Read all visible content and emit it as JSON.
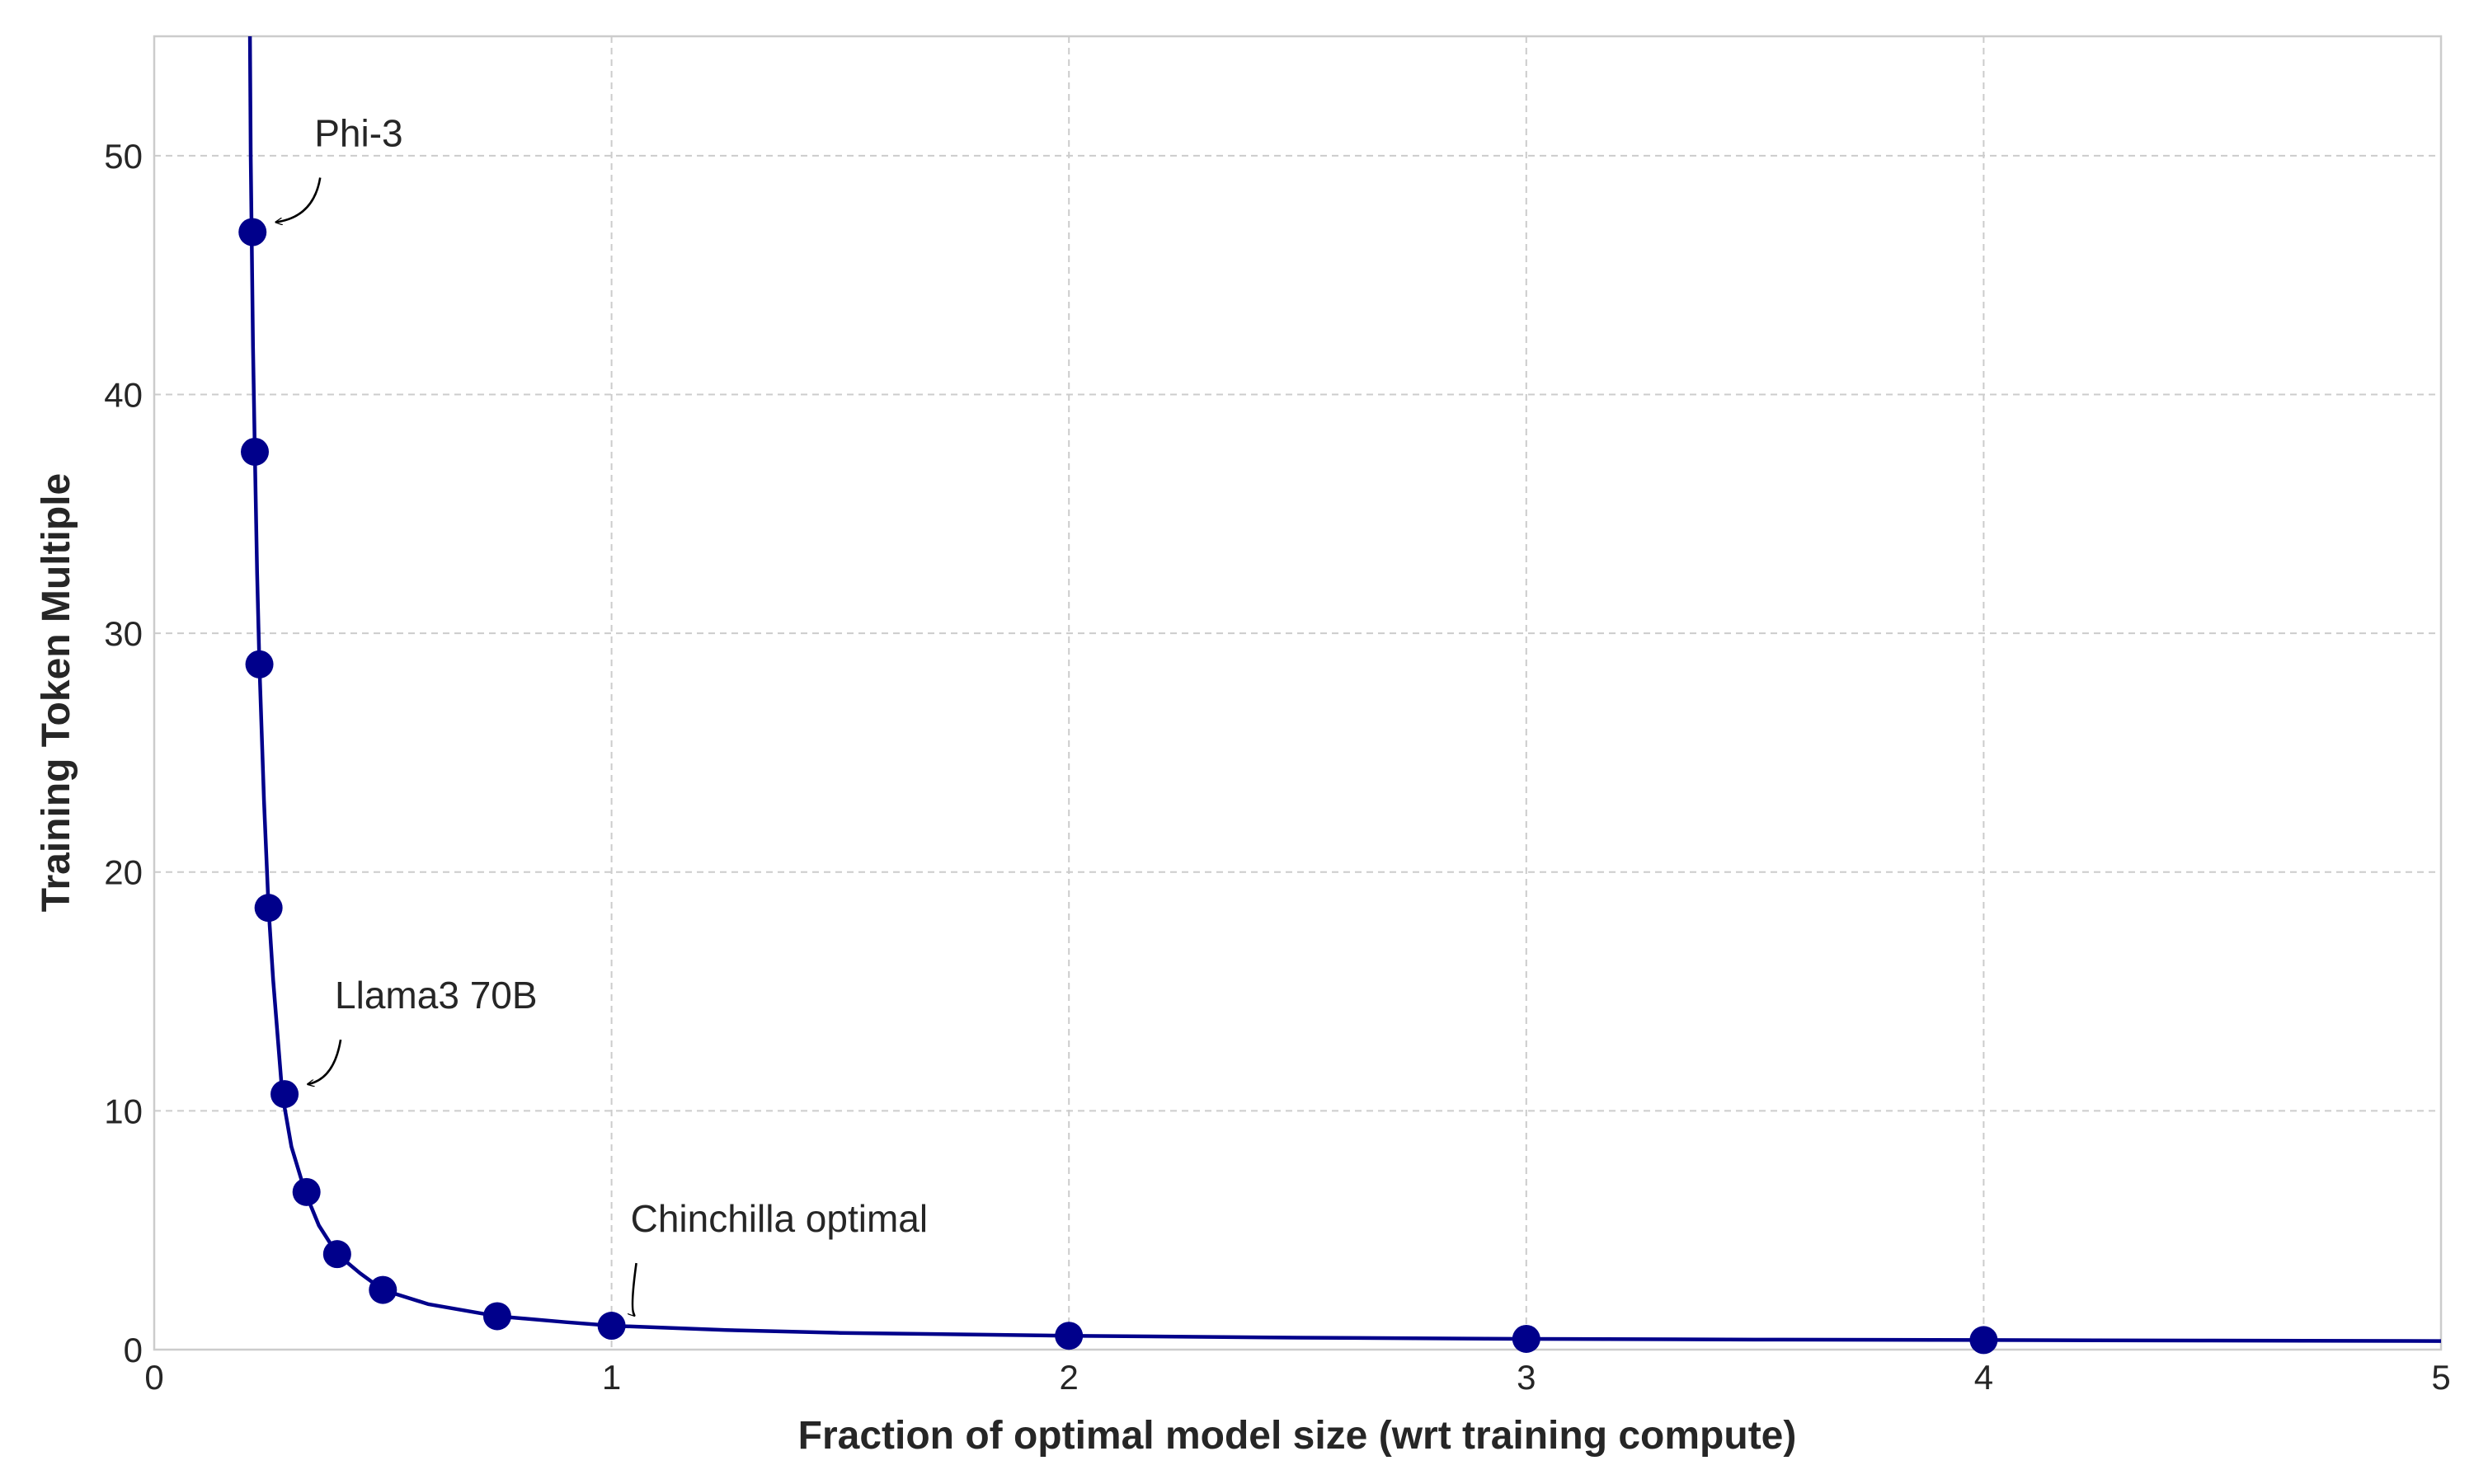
{
  "chart_data": {
    "type": "line",
    "title": "",
    "xlabel": "Fraction of optimal model size (wrt training compute)",
    "ylabel": "Training Token Multiple",
    "xlim": [
      0,
      5
    ],
    "ylim": [
      0,
      55
    ],
    "xticks": [
      0,
      1,
      2,
      3,
      4,
      5
    ],
    "yticks": [
      0,
      10,
      20,
      30,
      40,
      50
    ],
    "grid": true,
    "color": "#00008b",
    "curve": {
      "x": [
        0.209,
        0.21,
        0.211,
        0.213,
        0.216,
        0.22,
        0.225,
        0.23,
        0.24,
        0.25,
        0.26,
        0.28,
        0.3,
        0.33,
        0.36,
        0.4,
        0.45,
        0.5,
        0.6,
        0.75,
        0.9,
        1.0,
        1.25,
        1.5,
        2.0,
        2.5,
        3.0,
        3.5,
        4.0,
        4.5,
        5.0
      ],
      "y": [
        56,
        53,
        50,
        46.8,
        42,
        37.6,
        32.5,
        28.7,
        23,
        18.5,
        15.5,
        10.7,
        8.5,
        6.6,
        5.2,
        4.0,
        3.2,
        2.5,
        1.9,
        1.4,
        1.15,
        1.0,
        0.82,
        0.7,
        0.58,
        0.5,
        0.45,
        0.42,
        0.4,
        0.38,
        0.36
      ]
    },
    "points": {
      "x": [
        0.215,
        0.22,
        0.23,
        0.25,
        0.285,
        0.333,
        0.4,
        0.5,
        0.75,
        1,
        2,
        3,
        4
      ],
      "y": [
        46.8,
        37.6,
        28.7,
        18.5,
        10.7,
        6.6,
        4.0,
        2.5,
        1.4,
        1.0,
        0.58,
        0.45,
        0.4
      ]
    },
    "annotations": [
      {
        "text": "Phi-3",
        "x": 0.215,
        "y": 46.8
      },
      {
        "text": "Llama3 70B",
        "x": 0.285,
        "y": 10.7
      },
      {
        "text": "Chinchilla optimal",
        "x": 1,
        "y": 1.0
      }
    ]
  }
}
